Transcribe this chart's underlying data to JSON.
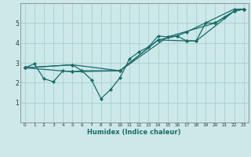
{
  "title": "",
  "xlabel": "Humidex (Indice chaleur)",
  "ylabel": "",
  "bg_color": "#cce8e8",
  "grid_color": "#aacfcf",
  "line_color": "#1a6b6b",
  "xlim": [
    -0.5,
    23.5
  ],
  "ylim": [
    0.0,
    6.0
  ],
  "yticks": [
    1,
    2,
    3,
    4,
    5
  ],
  "ytick_labels": [
    "1",
    "2",
    "3",
    "4",
    "5"
  ],
  "xticks": [
    0,
    1,
    2,
    3,
    4,
    5,
    6,
    7,
    8,
    9,
    10,
    11,
    12,
    13,
    14,
    15,
    16,
    17,
    18,
    19,
    20,
    21,
    22,
    23
  ],
  "line1": [
    [
      0,
      2.75
    ],
    [
      1,
      2.95
    ],
    [
      2,
      2.2
    ],
    [
      3,
      2.05
    ],
    [
      4,
      2.6
    ],
    [
      5,
      2.55
    ],
    [
      6,
      2.6
    ],
    [
      7,
      2.15
    ],
    [
      8,
      1.2
    ],
    [
      9,
      1.65
    ],
    [
      10,
      2.25
    ],
    [
      11,
      3.2
    ],
    [
      12,
      3.55
    ],
    [
      13,
      3.8
    ],
    [
      14,
      4.35
    ],
    [
      15,
      4.3
    ],
    [
      16,
      4.35
    ],
    [
      17,
      4.1
    ],
    [
      18,
      4.1
    ],
    [
      19,
      5.0
    ],
    [
      20,
      5.0
    ],
    [
      21,
      5.3
    ],
    [
      22,
      5.6
    ],
    [
      23,
      5.7
    ]
  ],
  "line2": [
    [
      0,
      2.75
    ],
    [
      5,
      2.9
    ],
    [
      6,
      2.6
    ],
    [
      10,
      2.6
    ],
    [
      14,
      4.15
    ],
    [
      16,
      4.35
    ],
    [
      17,
      4.55
    ],
    [
      22,
      5.7
    ],
    [
      23,
      5.7
    ]
  ],
  "line3": [
    [
      0,
      2.75
    ],
    [
      5,
      2.55
    ],
    [
      10,
      2.6
    ],
    [
      14,
      4.15
    ],
    [
      17,
      4.1
    ],
    [
      18,
      4.1
    ],
    [
      22,
      5.6
    ],
    [
      23,
      5.7
    ]
  ],
  "line4": [
    [
      0,
      2.75
    ],
    [
      5,
      2.9
    ],
    [
      10,
      2.6
    ],
    [
      15,
      4.3
    ],
    [
      20,
      5.0
    ],
    [
      22,
      5.6
    ],
    [
      23,
      5.7
    ]
  ]
}
